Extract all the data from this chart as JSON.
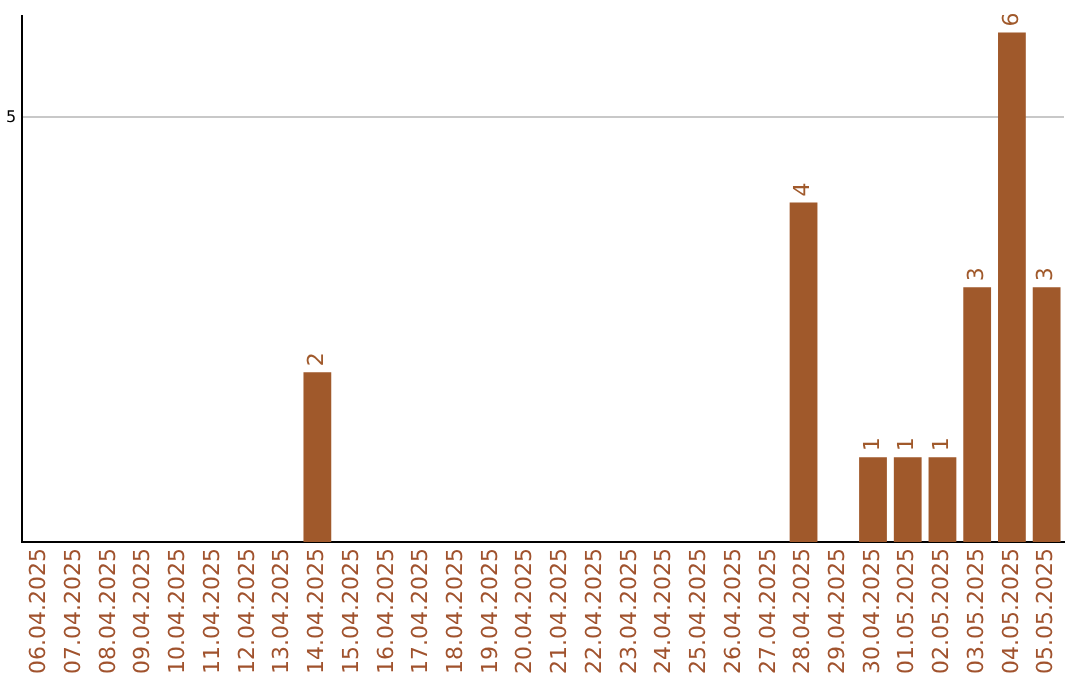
{
  "chart_data": {
    "type": "bar",
    "categories": [
      "06.04.2025",
      "07.04.2025",
      "08.04.2025",
      "09.04.2025",
      "10.04.2025",
      "11.04.2025",
      "12.04.2025",
      "13.04.2025",
      "14.04.2025",
      "15.04.2025",
      "16.04.2025",
      "17.04.2025",
      "18.04.2025",
      "19.04.2025",
      "20.04.2025",
      "21.04.2025",
      "22.04.2025",
      "23.04.2025",
      "24.04.2025",
      "25.04.2025",
      "26.04.2025",
      "27.04.2025",
      "28.04.2025",
      "29.04.2025",
      "30.04.2025",
      "01.05.2025",
      "02.05.2025",
      "03.05.2025",
      "04.05.2025",
      "05.05.2025"
    ],
    "values": [
      0,
      0,
      0,
      0,
      0,
      0,
      0,
      0,
      2,
      0,
      0,
      0,
      0,
      0,
      0,
      0,
      0,
      0,
      0,
      0,
      0,
      0,
      4,
      0,
      1,
      1,
      1,
      3,
      6,
      3
    ],
    "value_labels": [
      null,
      null,
      null,
      null,
      null,
      null,
      null,
      null,
      "2",
      null,
      null,
      null,
      null,
      null,
      null,
      null,
      null,
      null,
      null,
      null,
      null,
      null,
      "4",
      null,
      "1",
      "1",
      "1",
      "3",
      "6",
      "3"
    ],
    "color": "#a0592b",
    "ylim": [
      0,
      6.2
    ],
    "yticks": [
      5
    ],
    "grid": "y",
    "legend": false
  }
}
